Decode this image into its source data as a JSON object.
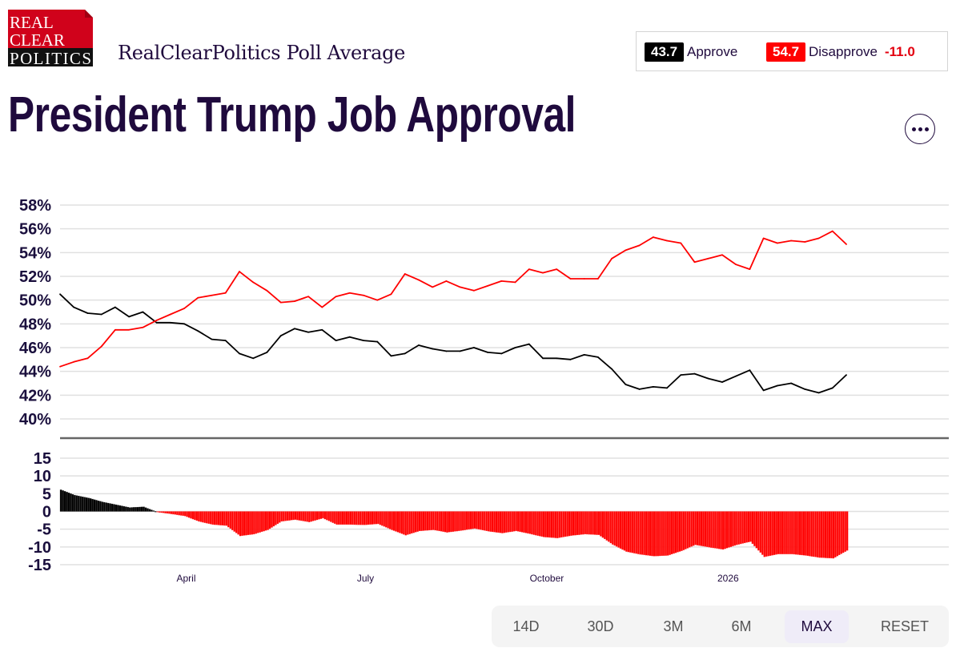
{
  "header": {
    "logo_text": [
      "REAL",
      "CLEAR",
      "POLITICS"
    ],
    "subtitle": "RealClearPolitics Poll Average",
    "title": "President Trump Job Approval"
  },
  "readout": {
    "approve_value": "43.7",
    "approve_label": "Approve",
    "disapprove_value": "54.7",
    "disapprove_label": "Disapprove",
    "spread": "-11.0"
  },
  "more_menu_icon": "ellipsis-icon",
  "colors": {
    "approve": "#000000",
    "disapprove": "#ff0000",
    "text": "#1f0a3d",
    "grid": "#e0e0e0"
  },
  "range_buttons": [
    {
      "label": "14D",
      "active": false
    },
    {
      "label": "30D",
      "active": false
    },
    {
      "label": "3M",
      "active": false
    },
    {
      "label": "6M",
      "active": false
    },
    {
      "label": "MAX",
      "active": true
    },
    {
      "label": "RESET",
      "active": false
    }
  ],
  "chart_data": [
    {
      "type": "line",
      "x_type": "date",
      "xlim": [
        "2025-01-27",
        "2026-04-23"
      ],
      "ylim": [
        40,
        58
      ],
      "yticks": [
        40,
        42,
        44,
        46,
        48,
        50,
        52,
        54,
        56,
        58
      ],
      "ytick_labels": [
        "40%",
        "42%",
        "44%",
        "46%",
        "48%",
        "50%",
        "52%",
        "54%",
        "56%",
        "58%"
      ],
      "grid": true,
      "x": [
        "2025-01-27",
        "2025-02-03",
        "2025-02-10",
        "2025-02-17",
        "2025-02-24",
        "2025-03-03",
        "2025-03-10",
        "2025-03-17",
        "2025-03-24",
        "2025-03-31",
        "2025-04-07",
        "2025-04-14",
        "2025-04-21",
        "2025-04-28",
        "2025-05-05",
        "2025-05-12",
        "2025-05-19",
        "2025-05-26",
        "2025-06-02",
        "2025-06-09",
        "2025-06-16",
        "2025-06-23",
        "2025-06-30",
        "2025-07-07",
        "2025-07-14",
        "2025-07-21",
        "2025-07-28",
        "2025-08-04",
        "2025-08-11",
        "2025-08-18",
        "2025-08-25",
        "2025-09-01",
        "2025-09-08",
        "2025-09-15",
        "2025-09-22",
        "2025-09-29",
        "2025-10-06",
        "2025-10-13",
        "2025-10-20",
        "2025-10-27",
        "2025-11-03",
        "2025-11-10",
        "2025-11-17",
        "2025-11-24",
        "2025-12-01",
        "2025-12-08",
        "2025-12-15",
        "2025-12-22",
        "2025-12-29",
        "2026-01-05",
        "2026-01-12",
        "2026-01-19",
        "2026-01-26",
        "2026-02-02",
        "2026-02-09",
        "2026-02-16",
        "2026-02-23",
        "2026-03-02"
      ],
      "series": [
        {
          "key": "approve",
          "color": "#000000",
          "values": [
            50.5,
            49.4,
            48.9,
            48.8,
            49.4,
            48.6,
            49.0,
            48.1,
            48.1,
            48.0,
            47.4,
            46.7,
            46.6,
            45.5,
            45.1,
            45.6,
            47.0,
            47.6,
            47.3,
            47.5,
            46.6,
            46.9,
            46.6,
            46.5,
            45.3,
            45.5,
            46.2,
            45.9,
            45.7,
            45.7,
            46.0,
            45.6,
            45.5,
            46.0,
            46.3,
            45.1,
            45.1,
            45.0,
            45.4,
            45.2,
            44.2,
            42.9,
            42.5,
            42.7,
            42.6,
            43.7,
            43.8,
            43.4,
            43.1,
            43.6,
            44.1,
            42.4,
            42.8,
            43.0,
            42.5,
            42.2,
            42.6,
            43.7
          ]
        },
        {
          "key": "disapprove",
          "color": "#ff0000",
          "values": [
            44.4,
            44.8,
            45.1,
            46.1,
            47.5,
            47.5,
            47.7,
            48.3,
            48.8,
            49.3,
            50.2,
            50.4,
            50.6,
            52.4,
            51.5,
            50.8,
            49.8,
            49.9,
            50.3,
            49.4,
            50.3,
            50.6,
            50.4,
            50.0,
            50.5,
            52.2,
            51.7,
            51.1,
            51.6,
            51.1,
            50.8,
            51.2,
            51.6,
            51.5,
            52.6,
            52.3,
            52.6,
            51.8,
            51.8,
            51.8,
            53.5,
            54.2,
            54.6,
            55.3,
            55.0,
            54.8,
            53.2,
            53.5,
            53.8,
            53.0,
            52.6,
            55.2,
            54.8,
            55.0,
            54.9,
            55.2,
            55.8,
            54.7
          ]
        }
      ]
    },
    {
      "type": "bar",
      "description_of_values": "spread = approve - disapprove",
      "ylim": [
        -15,
        15
      ],
      "yticks": [
        -15,
        -10,
        -5,
        0,
        5,
        10,
        15
      ],
      "ytick_labels": [
        "-15",
        "-10",
        "-5",
        "0",
        "5",
        "10",
        "15"
      ],
      "xticks": [
        "2025-04-01",
        "2025-07-01",
        "2025-10-01",
        "2026-01-01"
      ],
      "xtick_labels": [
        "April",
        "July",
        "October",
        "2026"
      ],
      "positive_color": "#000000",
      "negative_color": "#ff0000",
      "grid": true
    }
  ]
}
